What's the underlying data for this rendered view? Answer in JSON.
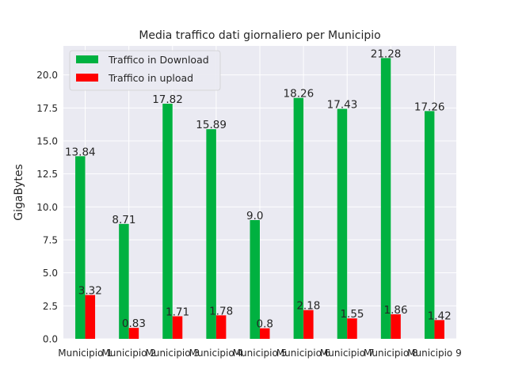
{
  "chart_data": {
    "type": "bar",
    "title": "Media traffico dati giornaliero per Municipio",
    "xlabel": "",
    "ylabel": "GigaBytes",
    "ylim": [
      0,
      22.2
    ],
    "yticks": [
      "0.0",
      "2.5",
      "5.0",
      "7.5",
      "10.0",
      "12.5",
      "15.0",
      "17.5",
      "20.0"
    ],
    "categories": [
      "Municipio 1",
      "Municipio 2",
      "Municipio 3",
      "Municipio 4",
      "Municipio 5",
      "Municipio 6",
      "Municipio 7",
      "Municipio 8",
      "Municipio 9"
    ],
    "series": [
      {
        "name": "Traffico in Download",
        "color": "#00b140",
        "values": [
          13.84,
          8.71,
          17.82,
          15.89,
          9.0,
          18.26,
          17.43,
          21.28,
          17.26
        ],
        "labels": [
          "13.84",
          "8.71",
          "17.82",
          "15.89",
          "9.0",
          "18.26",
          "17.43",
          "21.28",
          "17.26"
        ]
      },
      {
        "name": "Traffico in upload",
        "color": "#ff0000",
        "values": [
          3.32,
          0.83,
          1.71,
          1.78,
          0.8,
          2.18,
          1.55,
          1.86,
          1.42
        ],
        "labels": [
          "3.32",
          "0.83",
          "1.71",
          "1.78",
          "0.8",
          "2.18",
          "1.55",
          "1.86",
          "1.42"
        ]
      }
    ],
    "legend": "top-left",
    "grid": true,
    "background": "#eaeaf2"
  }
}
